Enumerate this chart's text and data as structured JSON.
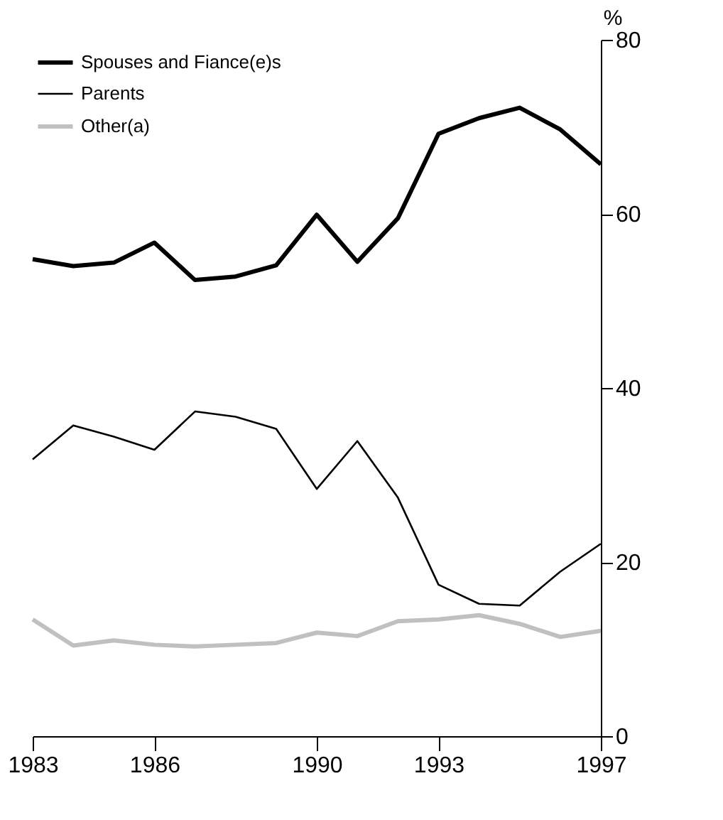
{
  "chart_data": {
    "type": "line",
    "ylabel": "%",
    "x": [
      1983,
      1984,
      1985,
      1986,
      1987,
      1988,
      1989,
      1990,
      1991,
      1992,
      1993,
      1994,
      1995,
      1996,
      1997
    ],
    "xlim": [
      1983,
      1997
    ],
    "xticks": [
      1983,
      1986,
      1990,
      1993,
      1997
    ],
    "ylim": [
      0,
      80
    ],
    "yticks": [
      0,
      20,
      40,
      60,
      80
    ],
    "grid": false,
    "legend": "top left",
    "marker": "none",
    "line_style": "solid",
    "series": [
      {
        "name": "Spouses and Fiance(e)s",
        "color": "#000000",
        "values": [
          54.8,
          54.0,
          54.4,
          56.7,
          52.4,
          52.8,
          54.1,
          59.9,
          54.5,
          59.5,
          69.2,
          71.0,
          72.2,
          69.7,
          65.7
        ]
      },
      {
        "name": "Parents",
        "color": "#000000",
        "values": [
          31.8,
          35.7,
          34.4,
          32.9,
          37.3,
          36.7,
          35.3,
          28.4,
          33.9,
          27.4,
          17.4,
          15.2,
          15.0,
          18.9,
          22.1
        ]
      },
      {
        "name": "Other(a)",
        "color": "#c0c0c0",
        "values": [
          13.4,
          10.4,
          11.0,
          10.5,
          10.3,
          10.5,
          10.7,
          11.9,
          11.5,
          13.2,
          13.4,
          13.9,
          12.9,
          11.4,
          12.1
        ]
      }
    ]
  }
}
